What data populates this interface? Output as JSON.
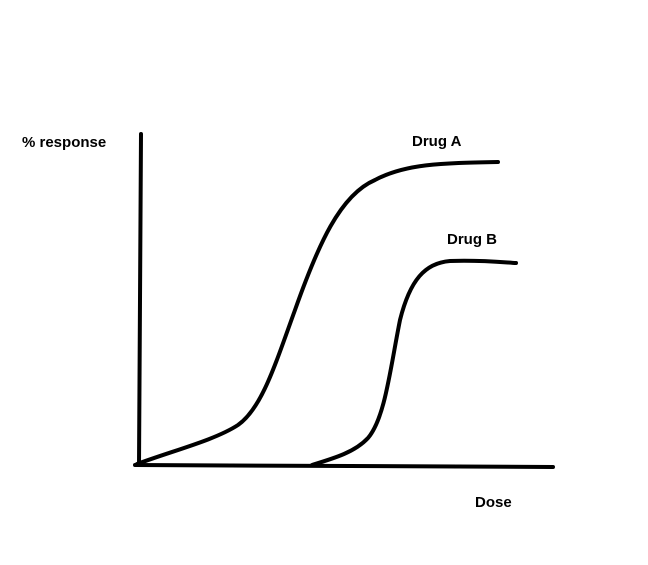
{
  "axes": {
    "y_label": "% response",
    "x_label": "Dose"
  },
  "curves": [
    {
      "label": "Drug A"
    },
    {
      "label": "Drug B"
    }
  ]
}
